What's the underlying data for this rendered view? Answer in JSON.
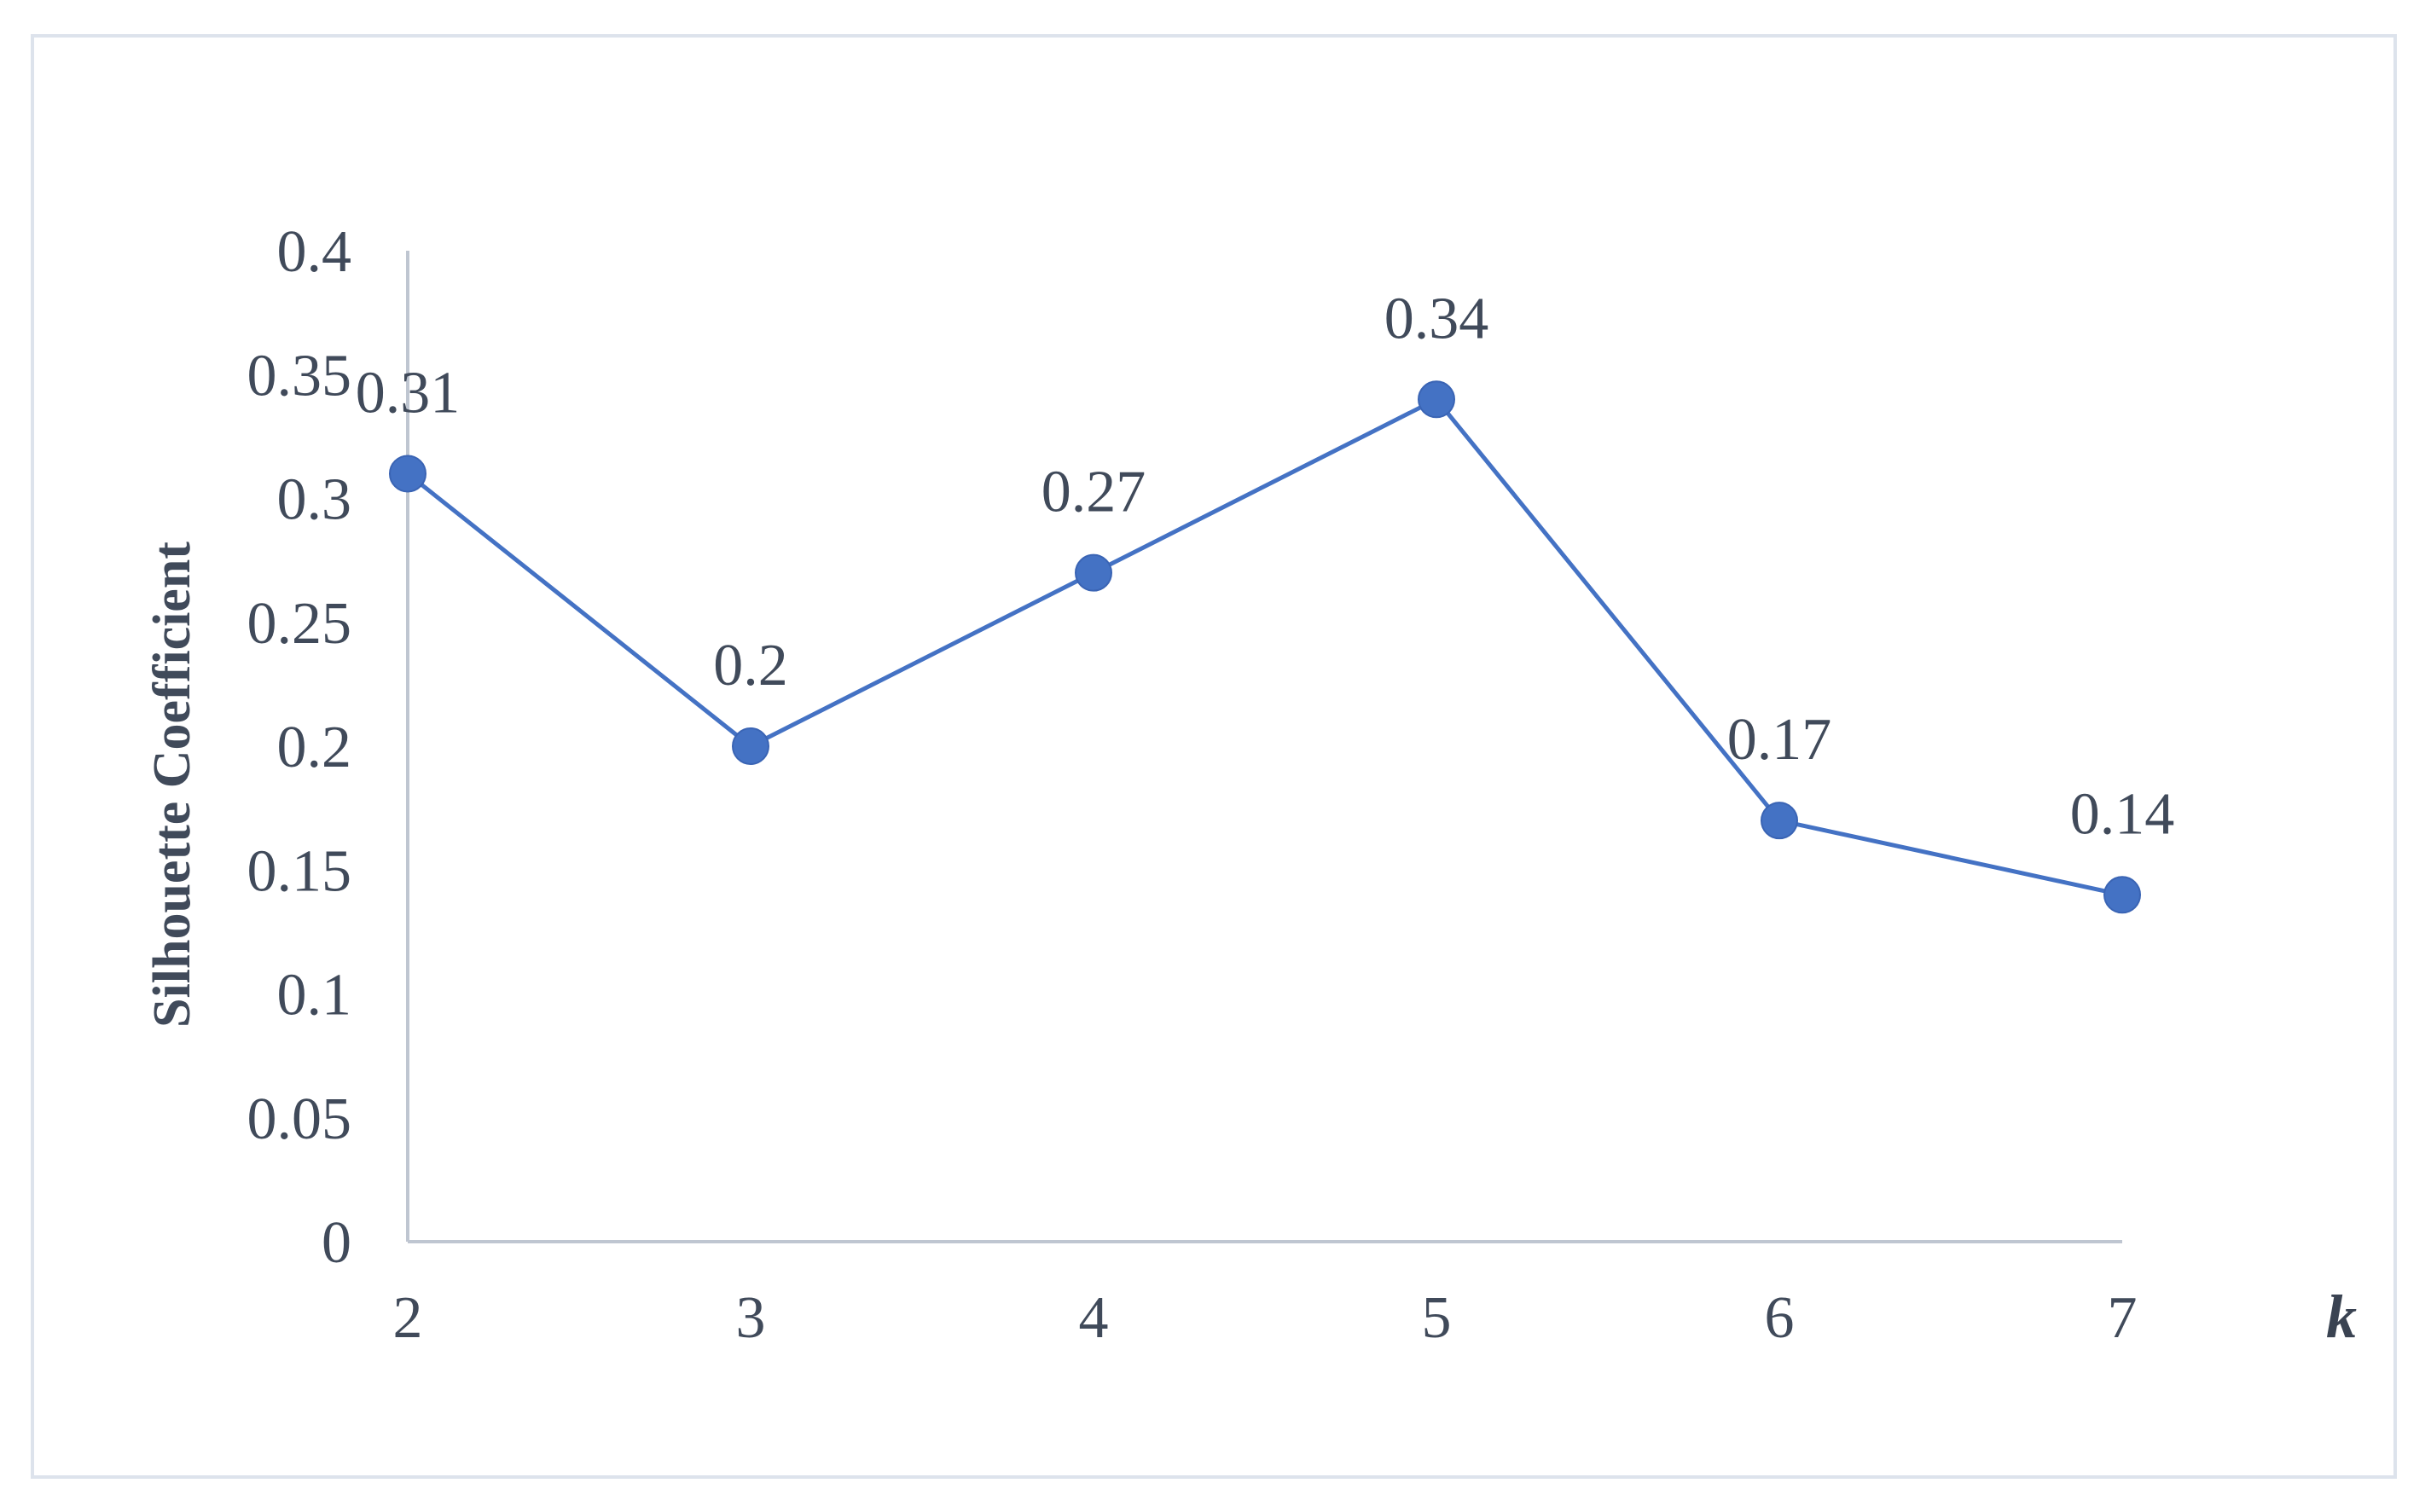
{
  "chart_data": {
    "type": "line",
    "title": "",
    "xlabel": "k",
    "ylabel": "Silhouette  Coefficient",
    "categories": [
      "2",
      "3",
      "4",
      "5",
      "6",
      "7"
    ],
    "series": [
      {
        "values": [
          0.31,
          0.2,
          0.27,
          0.34,
          0.17,
          0.14
        ],
        "data_labels": [
          "0.31",
          "0.2",
          "0.27",
          "0.34",
          "0.17",
          "0.14"
        ],
        "color": "#4472c4"
      }
    ],
    "ylim": [
      0,
      0.4
    ],
    "yticks": [
      0,
      0.05,
      0.1,
      0.15,
      0.2,
      0.25,
      0.3,
      0.35,
      0.4
    ],
    "ytick_labels": [
      "0",
      "0.05",
      "0.1",
      "0.15",
      "0.2",
      "0.25",
      "0.3",
      "0.35",
      "0.4"
    ],
    "grid": false,
    "legend": "none",
    "axis_color": "#bfc6d1",
    "text_color": "#404a5a"
  }
}
